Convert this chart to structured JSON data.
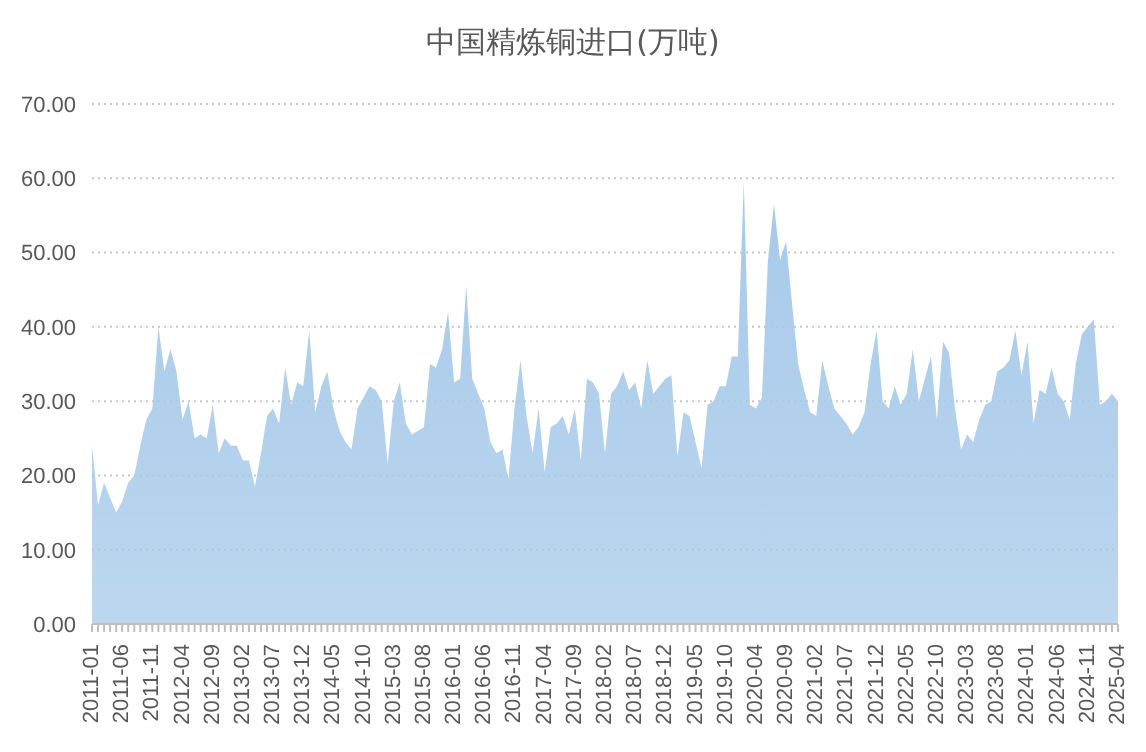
{
  "chart_data": {
    "type": "area",
    "title": "中国精炼铜进口(万吨)",
    "categories": [
      "2011-01",
      null,
      null,
      null,
      null,
      "2011-06",
      null,
      null,
      null,
      null,
      "2011-11",
      null,
      null,
      null,
      null,
      "2012-04",
      null,
      null,
      null,
      null,
      "2012-09",
      null,
      null,
      null,
      null,
      "2013-02",
      null,
      null,
      null,
      null,
      "2013-07",
      null,
      null,
      null,
      null,
      "2013-12",
      null,
      null,
      null,
      null,
      "2014-05",
      null,
      null,
      null,
      null,
      "2014-10",
      null,
      null,
      null,
      null,
      "2015-03",
      null,
      null,
      null,
      null,
      "2015-08",
      null,
      null,
      null,
      null,
      "2016-01",
      null,
      null,
      null,
      null,
      "2016-06",
      null,
      null,
      null,
      null,
      "2016-11",
      null,
      null,
      null,
      null,
      "2017-04",
      null,
      null,
      null,
      null,
      "2017-09",
      null,
      null,
      null,
      null,
      "2018-02",
      null,
      null,
      null,
      null,
      "2018-07",
      null,
      null,
      null,
      null,
      "2018-12",
      null,
      null,
      null,
      null,
      "2019-05",
      null,
      null,
      null,
      null,
      "2019-10",
      null,
      null,
      null,
      null,
      "2020-04",
      null,
      null,
      null,
      null,
      "2020-09",
      null,
      null,
      null,
      null,
      "2021-02",
      null,
      null,
      null,
      null,
      "2021-07",
      null,
      null,
      null,
      null,
      "2021-12",
      null,
      null,
      null,
      null,
      "2022-05",
      null,
      null,
      null,
      null,
      "2022-10",
      null,
      null,
      null,
      null,
      "2023-03",
      null,
      null,
      null,
      null,
      "2023-08",
      null,
      null,
      null,
      null,
      "2024-01",
      null,
      null,
      null,
      null,
      "2024-06",
      null,
      null,
      null,
      null,
      "2024-11",
      null,
      null,
      null,
      null,
      "2025-04"
    ],
    "series": [
      {
        "color": "#a6c9e9",
        "values": [
          24,
          16,
          19,
          17,
          15,
          16.5,
          19,
          20,
          24,
          27.5,
          29,
          40,
          34,
          37,
          34,
          27.5,
          30,
          25,
          25.5,
          25,
          29.5,
          23,
          25,
          24,
          24,
          22,
          22,
          18.5,
          23,
          28,
          29,
          27,
          34.5,
          29.5,
          32.5,
          32,
          39.5,
          28.5,
          32,
          34,
          29,
          26,
          24.5,
          23.5,
          29,
          30.5,
          32,
          31.5,
          30,
          21.5,
          30,
          32.5,
          27,
          25.5,
          26,
          26.5,
          35,
          34.5,
          37,
          42,
          32.5,
          33,
          45.5,
          33,
          31,
          29,
          24.5,
          23,
          23.5,
          19.5,
          29,
          35.5,
          28,
          23,
          29,
          20.5,
          26.5,
          27,
          28,
          25.5,
          29,
          22,
          33,
          32.5,
          31,
          23,
          31,
          32,
          34,
          31.5,
          32.5,
          29,
          35.5,
          31,
          32,
          33,
          33.5,
          22.5,
          28.5,
          28,
          24.5,
          21,
          29.5,
          30,
          32,
          32,
          36,
          36,
          59.5,
          29.5,
          29,
          30.5,
          49,
          56.5,
          49,
          51.5,
          43,
          35,
          31.5,
          28.5,
          28,
          35.5,
          32,
          29,
          28,
          27,
          25.5,
          26.5,
          28.5,
          35,
          39.5,
          30,
          29,
          32,
          29.5,
          31,
          37,
          30,
          33,
          36,
          27.5,
          38,
          36.5,
          29,
          23.5,
          25.5,
          24.5,
          27.5,
          29.5,
          30,
          34,
          34.5,
          35.5,
          39.5,
          33.5,
          38,
          27,
          31.5,
          31,
          34.5,
          31,
          30,
          27.5,
          35,
          39,
          40,
          41,
          29.5,
          30,
          31,
          30
        ]
      }
    ],
    "ylim": [
      0,
      70
    ],
    "yticks": [
      {
        "value": 0,
        "label": "0.00"
      },
      {
        "value": 10,
        "label": "10.00"
      },
      {
        "value": 20,
        "label": "20.00"
      },
      {
        "value": 30,
        "label": "30.00"
      },
      {
        "value": 40,
        "label": "40.00"
      },
      {
        "value": 50,
        "label": "50.00"
      },
      {
        "value": 60,
        "label": "60.00"
      },
      {
        "value": 70,
        "label": "70.00"
      }
    ],
    "grid": "y",
    "legend": false
  }
}
